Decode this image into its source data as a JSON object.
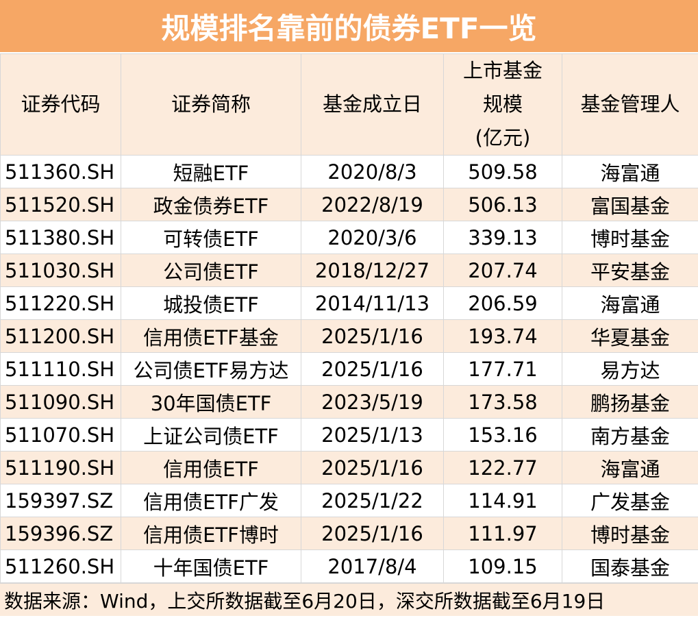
{
  "title": "规模排名靠前的债券ETF一览",
  "headers": {
    "code": "证券代码",
    "name": "证券简称",
    "date": "基金成立日",
    "size_line1": "上市基金",
    "size_line2": "规模",
    "size_line3": "(亿元)",
    "manager": "基金管理人"
  },
  "rows": [
    {
      "code": "511360.SH",
      "name": "短融ETF",
      "date": "2020/8/3",
      "size": "509.58",
      "manager": "海富通"
    },
    {
      "code": "511520.SH",
      "name": "政金债券ETF",
      "date": "2022/8/19",
      "size": "506.13",
      "manager": "富国基金"
    },
    {
      "code": "511380.SH",
      "name": "可转债ETF",
      "date": "2020/3/6",
      "size": "339.13",
      "manager": "博时基金"
    },
    {
      "code": "511030.SH",
      "name": "公司债ETF",
      "date": "2018/12/27",
      "size": "207.74",
      "manager": "平安基金"
    },
    {
      "code": "511220.SH",
      "name": "城投债ETF",
      "date": "2014/11/13",
      "size": "206.59",
      "manager": "海富通"
    },
    {
      "code": "511200.SH",
      "name": "信用债ETF基金",
      "date": "2025/1/16",
      "size": "193.74",
      "manager": "华夏基金"
    },
    {
      "code": "511110.SH",
      "name": "公司债ETF易方达",
      "date": "2025/1/16",
      "size": "177.71",
      "manager": "易方达"
    },
    {
      "code": "511090.SH",
      "name": "30年国债ETF",
      "date": "2023/5/19",
      "size": "173.58",
      "manager": "鹏扬基金"
    },
    {
      "code": "511070.SH",
      "name": "上证公司债ETF",
      "date": "2025/1/13",
      "size": "153.16",
      "manager": "南方基金"
    },
    {
      "code": "511190.SH",
      "name": "信用债ETF",
      "date": "2025/1/16",
      "size": "122.77",
      "manager": "海富通"
    },
    {
      "code": "159397.SZ",
      "name": "信用债ETF广发",
      "date": "2025/1/22",
      "size": "114.91",
      "manager": "广发基金"
    },
    {
      "code": "159396.SZ",
      "name": "信用债ETF博时",
      "date": "2025/1/16",
      "size": "111.97",
      "manager": "博时基金"
    },
    {
      "code": "511260.SH",
      "name": "十年国债ETF",
      "date": "2017/8/4",
      "size": "109.15",
      "manager": "国泰基金"
    }
  ],
  "footer": "数据来源：Wind，上交所数据截至6月20日，深交所数据截至6月19日"
}
